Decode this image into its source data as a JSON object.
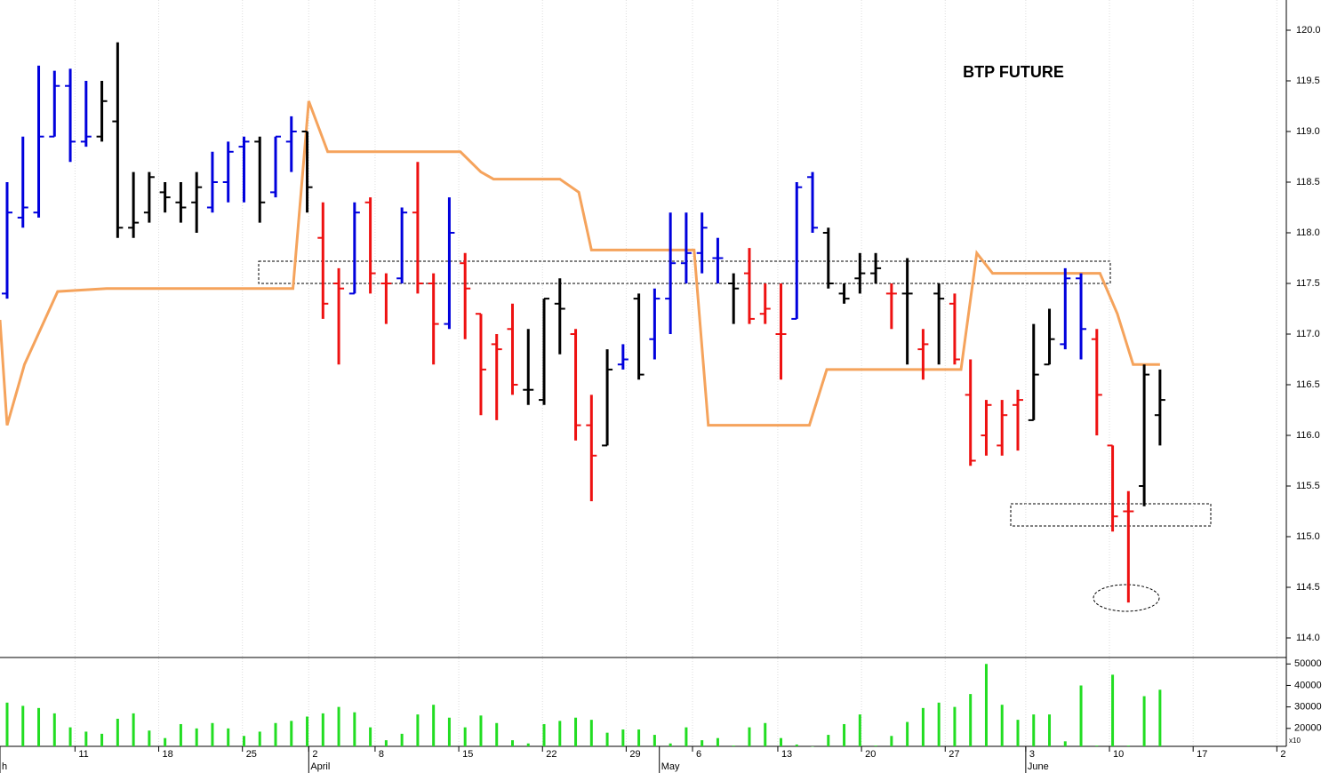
{
  "chart_data": {
    "type": "ohlc",
    "title": "BTP FUTURE",
    "x": [
      0,
      1,
      2,
      3,
      4,
      5,
      6,
      7,
      8,
      9,
      10,
      11,
      12,
      13,
      14,
      15,
      16,
      17,
      18,
      19,
      20,
      21,
      22,
      23,
      24,
      25,
      26,
      27,
      28,
      29,
      30,
      31,
      32,
      33,
      34,
      35,
      36,
      37,
      38,
      39,
      40,
      41,
      42,
      43,
      44,
      45,
      46,
      47,
      48,
      49,
      50,
      51,
      52,
      53,
      54,
      55,
      56,
      57,
      58,
      59,
      60,
      61,
      62,
      63,
      64,
      65,
      66,
      67,
      68,
      69,
      70,
      71,
      72,
      73
    ],
    "open": [
      117.4,
      118.15,
      118.2,
      118.95,
      119.45,
      118.9,
      118.95,
      119.1,
      118.05,
      118.2,
      118.4,
      118.3,
      118.3,
      118.25,
      118.5,
      118.85,
      118.9,
      118.4,
      118.9,
      119.0,
      117.95,
      117.5,
      117.4,
      118.3,
      117.5,
      117.55,
      118.2,
      117.5,
      117.1,
      117.7,
      117.2,
      116.9,
      117.05,
      116.45,
      116.35,
      117.3,
      117.0,
      116.1,
      115.9,
      116.7,
      117.35,
      116.95,
      117.35,
      117.7,
      117.8,
      117.75,
      117.5,
      117.6,
      117.2,
      117.0,
      117.15,
      118.55,
      118.0,
      117.4,
      117.55,
      117.6,
      117.4,
      117.4,
      116.85,
      117.4,
      117.3,
      116.4,
      116.0,
      115.9,
      116.3,
      116.15,
      116.7,
      116.9,
      117.55,
      116.95,
      115.9,
      115.25,
      115.5,
      116.2
    ],
    "high": [
      118.5,
      118.95,
      119.65,
      119.6,
      119.62,
      119.5,
      119.5,
      119.88,
      118.6,
      118.6,
      118.5,
      118.5,
      118.6,
      118.8,
      118.9,
      118.95,
      118.95,
      118.95,
      119.15,
      119.0,
      118.3,
      117.65,
      118.3,
      118.35,
      117.6,
      118.25,
      118.7,
      117.6,
      118.35,
      117.8,
      117.2,
      117.0,
      117.3,
      117.05,
      117.35,
      117.55,
      117.05,
      116.4,
      116.85,
      116.9,
      117.4,
      117.45,
      118.2,
      118.2,
      118.2,
      117.95,
      117.6,
      117.85,
      117.5,
      117.5,
      118.5,
      118.6,
      118.05,
      117.5,
      117.8,
      117.8,
      117.5,
      117.75,
      117.05,
      117.5,
      117.4,
      116.75,
      116.35,
      116.35,
      116.45,
      117.1,
      117.25,
      117.65,
      117.6,
      117.05,
      115.9,
      115.45,
      116.7,
      116.65
    ],
    "low": [
      117.35,
      118.05,
      118.15,
      118.95,
      118.7,
      118.85,
      118.9,
      117.95,
      117.95,
      118.1,
      118.2,
      118.1,
      118.0,
      118.2,
      118.3,
      118.3,
      118.1,
      118.35,
      118.6,
      118.2,
      117.15,
      116.7,
      117.4,
      117.4,
      117.1,
      117.5,
      117.4,
      116.7,
      117.05,
      116.95,
      116.2,
      116.15,
      116.4,
      116.3,
      116.3,
      116.8,
      115.95,
      115.35,
      115.9,
      116.65,
      116.55,
      116.75,
      117.0,
      117.5,
      117.6,
      117.5,
      117.1,
      117.1,
      117.1,
      116.55,
      117.15,
      118.0,
      117.45,
      117.3,
      117.4,
      117.5,
      117.05,
      116.7,
      116.55,
      116.7,
      116.7,
      115.7,
      115.8,
      115.8,
      115.85,
      116.15,
      116.7,
      116.85,
      116.75,
      116.0,
      115.05,
      114.35,
      115.3,
      115.9
    ],
    "close": [
      118.2,
      118.25,
      118.95,
      119.45,
      118.9,
      118.95,
      119.3,
      118.05,
      118.1,
      118.55,
      118.35,
      118.25,
      118.45,
      118.5,
      118.8,
      118.9,
      118.3,
      118.95,
      119.0,
      118.45,
      117.3,
      117.45,
      118.2,
      117.6,
      117.5,
      118.2,
      117.5,
      117.1,
      118.0,
      117.45,
      116.65,
      116.85,
      116.5,
      116.45,
      117.35,
      117.25,
      116.1,
      115.8,
      116.65,
      116.75,
      116.6,
      117.35,
      117.7,
      117.8,
      118.05,
      117.75,
      117.45,
      117.15,
      117.25,
      117.0,
      118.45,
      118.05,
      117.5,
      117.35,
      117.6,
      117.65,
      117.4,
      117.4,
      116.9,
      117.35,
      116.75,
      115.75,
      116.3,
      116.2,
      116.35,
      116.6,
      116.95,
      117.55,
      117.05,
      116.4,
      115.2,
      115.25,
      116.6,
      116.35
    ],
    "colors": [
      "#0000dd",
      "#0000dd",
      "#0000dd",
      "#0000dd",
      "#0000dd",
      "#0000dd",
      "#000000",
      "#000000",
      "#000000",
      "#000000",
      "#000000",
      "#000000",
      "#000000",
      "#0000dd",
      "#0000dd",
      "#0000dd",
      "#000000",
      "#0000dd",
      "#0000dd",
      "#000000",
      "#ee1111",
      "#ee1111",
      "#0000dd",
      "#ee1111",
      "#ee1111",
      "#0000dd",
      "#ee1111",
      "#ee1111",
      "#0000dd",
      "#ee1111",
      "#ee1111",
      "#ee1111",
      "#ee1111",
      "#000000",
      "#000000",
      "#000000",
      "#ee1111",
      "#ee1111",
      "#000000",
      "#0000dd",
      "#000000",
      "#0000dd",
      "#0000dd",
      "#0000dd",
      "#0000dd",
      "#0000dd",
      "#000000",
      "#ee1111",
      "#ee1111",
      "#ee1111",
      "#0000dd",
      "#0000dd",
      "#000000",
      "#000000",
      "#000000",
      "#000000",
      "#ee1111",
      "#000000",
      "#ee1111",
      "#000000",
      "#ee1111",
      "#ee1111",
      "#ee1111",
      "#ee1111",
      "#ee1111",
      "#000000",
      "#000000",
      "#0000dd",
      "#0000dd",
      "#ee1111",
      "#ee1111",
      "#ee1111",
      "#000000",
      "#000000"
    ],
    "line": {
      "color": "#f5a35c",
      "x": [
        -0.45,
        0,
        1.1,
        3.2,
        6.3,
        15.9,
        18.1,
        19.1,
        20.3,
        28.7,
        30,
        30.8,
        35,
        36.2,
        37,
        43.5,
        44.4,
        50.8,
        51.9,
        60.4,
        61.4,
        62.4,
        69.2,
        70.3,
        71.3,
        73
      ],
      "values": [
        117.14,
        116.1,
        116.7,
        117.42,
        117.45,
        117.45,
        117.45,
        119.3,
        118.8,
        118.8,
        118.6,
        118.53,
        118.53,
        118.4,
        117.83,
        117.83,
        116.1,
        116.1,
        116.65,
        116.65,
        117.8,
        117.6,
        117.6,
        117.2,
        116.7,
        116.7
      ]
    },
    "xlim": [
      -0.45,
      81.0
    ],
    "ylim": [
      114.0,
      120.0
    ],
    "yticks": [
      {
        "value": 114,
        "label": "114.0"
      },
      114.5,
      {
        "value": 115,
        "label": "115.0"
      },
      115.5,
      {
        "value": 116,
        "label": "116.0"
      },
      116.5,
      {
        "value": 117,
        "label": "117.0"
      },
      117.5,
      {
        "value": 118,
        "label": "118.0"
      },
      118.5,
      {
        "value": 119,
        "label": "119.0"
      },
      119.5,
      {
        "value": 120,
        "label": "120.0"
      }
    ],
    "xticks": [
      {
        "value": 4.3,
        "label": "11"
      },
      {
        "value": 9.6,
        "label": "18"
      },
      {
        "value": 14.9,
        "label": "25"
      },
      {
        "value": 19.1,
        "label": "2"
      },
      {
        "value": 23.3,
        "label": "8"
      },
      {
        "value": 28.6,
        "label": "15"
      },
      {
        "value": 33.9,
        "label": "22"
      },
      {
        "value": 39.2,
        "label": "29"
      },
      {
        "value": 43.4,
        "label": "6"
      },
      {
        "value": 48.8,
        "label": "13"
      },
      {
        "value": 54.1,
        "label": "20"
      },
      {
        "value": 59.4,
        "label": "27"
      },
      {
        "value": 64.5,
        "label": "3"
      },
      {
        "value": 69.8,
        "label": "10"
      },
      {
        "value": 75.1,
        "label": "17"
      },
      {
        "value": 80.4,
        "label": "2"
      }
    ],
    "month_ticks": [
      {
        "value": -0.45,
        "label": "h"
      },
      {
        "value": 19.1,
        "label": "April"
      },
      {
        "value": 41.3,
        "label": "May"
      },
      {
        "value": 64.5,
        "label": "June"
      }
    ],
    "grid": true,
    "volume": {
      "color": "#22dd22",
      "values": [
        32000,
        30500,
        29500,
        27000,
        20500,
        18500,
        17500,
        24500,
        27000,
        19000,
        15500,
        22000,
        20000,
        22500,
        20000,
        16500,
        18500,
        22500,
        23500,
        25500,
        27000,
        30000,
        27500,
        20500,
        14500,
        17500,
        26500,
        31000,
        25000,
        20500,
        26000,
        22500,
        14500,
        13000,
        22000,
        23500,
        25000,
        24000,
        18000,
        19500,
        19500,
        17000,
        13000,
        20500,
        14500,
        15500,
        12000,
        20500,
        22500,
        15500,
        12500,
        11500,
        17000,
        22000,
        26500,
        12000,
        16500,
        23000,
        29500,
        32000,
        30000,
        36000,
        50000,
        31000,
        24000,
        26500,
        26500,
        14000,
        40000,
        12000,
        45000,
        12000,
        35000,
        38000
      ],
      "ylim": [
        10000,
        53000
      ],
      "yticks": [
        20000,
        30000,
        40000,
        50000
      ],
      "scale_label": "x10"
    }
  }
}
